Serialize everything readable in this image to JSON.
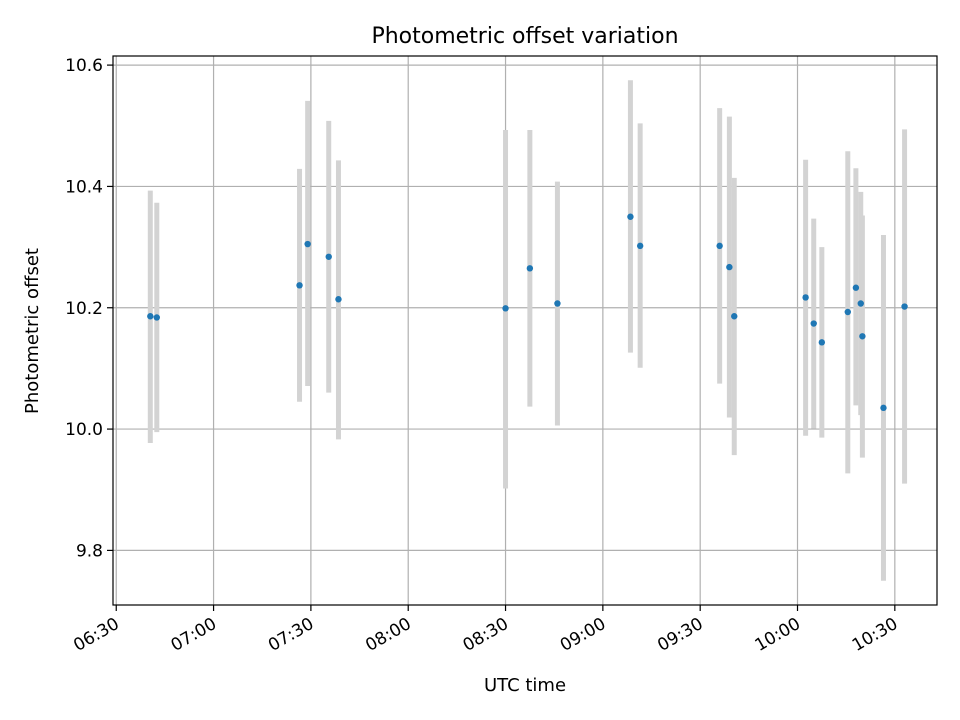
{
  "chart_data": {
    "type": "scatter",
    "title": "Photometric offset variation",
    "xlabel": "UTC time",
    "ylabel": "Photometric offset",
    "xlim": [
      "06:29",
      "10:43"
    ],
    "ylim": [
      9.71,
      10.615
    ],
    "x_ticks": [
      "06:30",
      "07:00",
      "07:30",
      "08:00",
      "08:30",
      "09:00",
      "09:30",
      "10:00",
      "10:30"
    ],
    "y_ticks": [
      "9.8",
      "10.0",
      "10.2",
      "10.4",
      "10.6"
    ],
    "grid": true,
    "colors": {
      "point": "#1f77b4",
      "errorbar": "#d3d3d3"
    },
    "series": [
      {
        "points": [
          {
            "x": "06:40:30",
            "y": 10.186,
            "ylow": 9.977,
            "yhigh": 10.393
          },
          {
            "x": "06:42:30",
            "y": 10.184,
            "ylow": 9.995,
            "yhigh": 10.373
          },
          {
            "x": "07:26:30",
            "y": 10.237,
            "ylow": 10.045,
            "yhigh": 10.429
          },
          {
            "x": "07:29:00",
            "y": 10.305,
            "ylow": 10.071,
            "yhigh": 10.541
          },
          {
            "x": "07:35:30",
            "y": 10.284,
            "ylow": 10.06,
            "yhigh": 10.508
          },
          {
            "x": "07:38:30",
            "y": 10.214,
            "ylow": 9.983,
            "yhigh": 10.443
          },
          {
            "x": "08:30:00",
            "y": 10.199,
            "ylow": 9.902,
            "yhigh": 10.493
          },
          {
            "x": "08:37:30",
            "y": 10.265,
            "ylow": 10.037,
            "yhigh": 10.493
          },
          {
            "x": "08:46:00",
            "y": 10.207,
            "ylow": 10.006,
            "yhigh": 10.408
          },
          {
            "x": "09:08:30",
            "y": 10.35,
            "ylow": 10.126,
            "yhigh": 10.575
          },
          {
            "x": "09:11:30",
            "y": 10.302,
            "ylow": 10.101,
            "yhigh": 10.504
          },
          {
            "x": "09:36:00",
            "y": 10.302,
            "ylow": 10.075,
            "yhigh": 10.529
          },
          {
            "x": "09:39:00",
            "y": 10.267,
            "ylow": 10.019,
            "yhigh": 10.515
          },
          {
            "x": "09:40:30",
            "y": 10.186,
            "ylow": 9.957,
            "yhigh": 10.414
          },
          {
            "x": "10:02:30",
            "y": 10.217,
            "ylow": 9.989,
            "yhigh": 10.444
          },
          {
            "x": "10:05:00",
            "y": 10.174,
            "ylow": 10.001,
            "yhigh": 10.347
          },
          {
            "x": "10:07:30",
            "y": 10.143,
            "ylow": 9.986,
            "yhigh": 10.3
          },
          {
            "x": "10:15:30",
            "y": 10.193,
            "ylow": 9.927,
            "yhigh": 10.458
          },
          {
            "x": "10:18:00",
            "y": 10.233,
            "ylow": 10.039,
            "yhigh": 10.43
          },
          {
            "x": "10:19:30",
            "y": 10.207,
            "ylow": 10.023,
            "yhigh": 10.391
          },
          {
            "x": "10:20:00",
            "y": 10.153,
            "ylow": 9.953,
            "yhigh": 10.352
          },
          {
            "x": "10:26:30",
            "y": 10.035,
            "ylow": 9.75,
            "yhigh": 10.32
          },
          {
            "x": "10:33:00",
            "y": 10.202,
            "ylow": 9.91,
            "yhigh": 10.494
          }
        ]
      }
    ]
  }
}
